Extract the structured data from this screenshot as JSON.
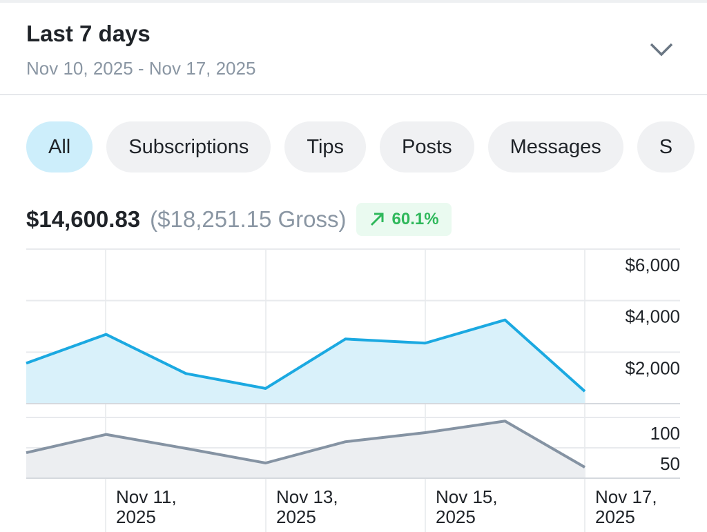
{
  "header": {
    "title": "Last 7 days",
    "date_range": "Nov 10, 2025 - Nov 17, 2025",
    "dropdown_icon": "chevron-down-icon"
  },
  "filters": [
    {
      "label": "All",
      "active": true
    },
    {
      "label": "Subscriptions"
    },
    {
      "label": "Tips"
    },
    {
      "label": "Posts"
    },
    {
      "label": "Messages"
    },
    {
      "label": "S"
    }
  ],
  "summary": {
    "net": "$14,600.83",
    "gross": "($18,251.15 Gross)",
    "change": "60.1%",
    "change_icon": "arrow-up-right-icon",
    "change_color": "#2fb85b"
  },
  "chart_data": [
    {
      "type": "area",
      "x": [
        "Nov 10, 2025",
        "Nov 11, 2025",
        "Nov 12, 2025",
        "Nov 13, 2025",
        "Nov 14, 2025",
        "Nov 15, 2025",
        "Nov 16, 2025",
        "Nov 17, 2025"
      ],
      "values": [
        1570,
        2690,
        1170,
        590,
        2510,
        2350,
        3250,
        480
      ],
      "ylim": [
        0,
        6000
      ],
      "yticks": [
        "$2,000",
        "$4,000",
        "$6,000"
      ],
      "ytick_values": [
        2000,
        4000,
        6000
      ],
      "color": "#1ba9e1",
      "fill": "#d9f1fa",
      "grid": true
    },
    {
      "type": "area",
      "values": [
        42,
        72,
        49,
        25,
        60,
        75,
        94,
        18
      ],
      "ylim": [
        0,
        100
      ],
      "yticks": [
        "50",
        "100"
      ],
      "ytick_values": [
        50,
        100
      ],
      "color": "#8593a3",
      "fill": "#eceef1",
      "grid": true,
      "xtick_labels": [
        [
          "Nov 11,",
          "2025"
        ],
        [
          "Nov 13,",
          "2025"
        ],
        [
          "Nov 15,",
          "2025"
        ],
        [
          "Nov 17,",
          "2025"
        ]
      ]
    }
  ]
}
